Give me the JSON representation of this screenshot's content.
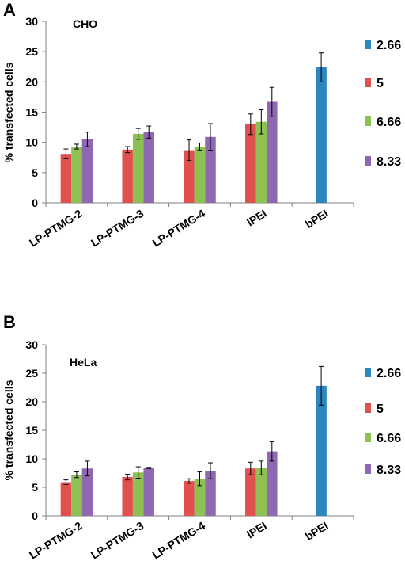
{
  "chart_data": [
    {
      "type": "bar",
      "panel": "A",
      "cell_line": "CHO",
      "ylabel": "% transfected  cells",
      "ylim": [
        0,
        30
      ],
      "yticks": [
        0,
        5,
        10,
        15,
        20,
        25,
        30
      ],
      "categories": [
        "LP-PTMG-2",
        "LP-PTMG-3",
        "LP-PTMG-4",
        "lPEI",
        "bPEI"
      ],
      "legend_position": "right",
      "series": [
        {
          "name": "2.66",
          "color": "#2e86c1",
          "values": [
            null,
            null,
            null,
            null,
            22.4
          ],
          "errors": [
            null,
            null,
            null,
            null,
            2.4
          ]
        },
        {
          "name": "5",
          "color": "#e0504f",
          "values": [
            8.1,
            8.8,
            8.7,
            13.0,
            null
          ],
          "errors": [
            0.8,
            0.5,
            1.7,
            1.7,
            null
          ]
        },
        {
          "name": "6.66",
          "color": "#8dc153",
          "values": [
            9.3,
            11.4,
            9.3,
            13.4,
            null
          ],
          "errors": [
            0.4,
            0.9,
            0.6,
            2.0,
            null
          ]
        },
        {
          "name": "8.33",
          "color": "#8e68b1",
          "values": [
            10.5,
            11.7,
            10.9,
            16.7,
            null
          ],
          "errors": [
            1.2,
            1.0,
            2.2,
            2.4,
            null
          ]
        }
      ]
    },
    {
      "type": "bar",
      "panel": "B",
      "cell_line": "HeLa",
      "ylabel": "% transfected  cells",
      "ylim": [
        0,
        30
      ],
      "yticks": [
        0,
        5,
        10,
        15,
        20,
        25,
        30
      ],
      "categories": [
        "LP-PTMG-2",
        "LP-PTMG-3",
        "LP-PTMG-4",
        "lPEI",
        "bPEI"
      ],
      "legend_position": "right",
      "series": [
        {
          "name": "2.66",
          "color": "#2e86c1",
          "values": [
            null,
            null,
            null,
            null,
            22.8
          ],
          "errors": [
            null,
            null,
            null,
            null,
            3.4
          ]
        },
        {
          "name": "5",
          "color": "#e0504f",
          "values": [
            5.9,
            6.8,
            6.1,
            8.3,
            null
          ],
          "errors": [
            0.4,
            0.5,
            0.4,
            1.1,
            null
          ]
        },
        {
          "name": "6.66",
          "color": "#8dc153",
          "values": [
            7.2,
            7.6,
            6.5,
            8.4,
            null
          ],
          "errors": [
            0.5,
            1.0,
            1.2,
            1.2,
            null
          ]
        },
        {
          "name": "8.33",
          "color": "#8e68b1",
          "values": [
            8.3,
            8.4,
            7.9,
            11.3,
            null
          ],
          "errors": [
            1.3,
            0.1,
            1.4,
            1.7,
            null
          ]
        }
      ]
    }
  ]
}
